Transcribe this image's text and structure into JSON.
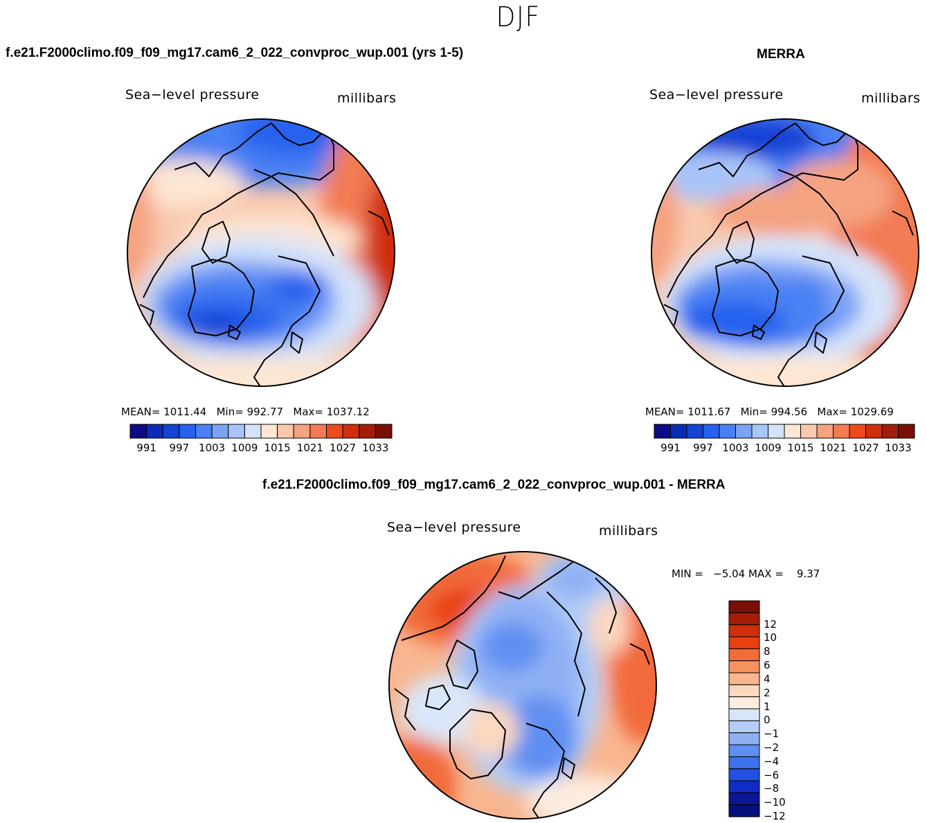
{
  "season_title": "DJF",
  "colors": {
    "abs_scale": [
      "#0b0d86",
      "#0c2cb7",
      "#1443d6",
      "#2762ee",
      "#4a80f3",
      "#7ba2f5",
      "#a9c4f8",
      "#d4e3fa",
      "#fde6d3",
      "#f9c8ad",
      "#f5a381",
      "#f27b52",
      "#ee4a1c",
      "#cf2f0d",
      "#a31d08",
      "#7a0f05"
    ],
    "diff_scale": [
      "#7a0f05",
      "#a31d08",
      "#cf2f0d",
      "#e8400f",
      "#f26b3a",
      "#f5925f",
      "#f8b690",
      "#fbd8bf",
      "#fdece0",
      "#d9e7fa",
      "#b4cdf7",
      "#8fb1f4",
      "#5f8ff2",
      "#3d72ee",
      "#2150e3",
      "#0f2cc4",
      "#0a1696",
      "#06107a"
    ]
  },
  "panels": {
    "model": {
      "title": "f.e21.F2000climo.f09_f09_mg17.cam6_2_022_convproc_wup.001 (yrs 1-5)",
      "var_label": "Sea−level pressure",
      "units": "millibars",
      "stats": {
        "mean_label": "MEAN=",
        "mean": "1011.44",
        "min_label": "Min=",
        "min": "992.77",
        "max_label": "Max=",
        "max": "1037.12"
      },
      "colorbar_ticks": [
        "991",
        "997",
        "1003",
        "1009",
        "1015",
        "1021",
        "1027",
        "1033"
      ]
    },
    "obs": {
      "title": "MERRA",
      "var_label": "Sea−level pressure",
      "units": "millibars",
      "stats": {
        "mean_label": "MEAN=",
        "mean": "1011.67",
        "min_label": "Min=",
        "min": "994.56",
        "max_label": "Max=",
        "max": "1029.69"
      },
      "colorbar_ticks": [
        "991",
        "997",
        "1003",
        "1009",
        "1015",
        "1021",
        "1027",
        "1033"
      ]
    },
    "diff": {
      "title": "f.e21.F2000climo.f09_f09_mg17.cam6_2_022_convproc_wup.001 - MERRA",
      "var_label": "Sea−level pressure",
      "units": "millibars",
      "stats": {
        "min_label": "MIN =",
        "min": "−5.04",
        "max_label": "MAX =",
        "max": "9.37"
      },
      "colorbar_ticks": [
        "12",
        "10",
        "8",
        "6",
        "4",
        "2",
        "1",
        "0",
        "−1",
        "−2",
        "−4",
        "−6",
        "−8",
        "−10",
        "−12"
      ]
    }
  }
}
